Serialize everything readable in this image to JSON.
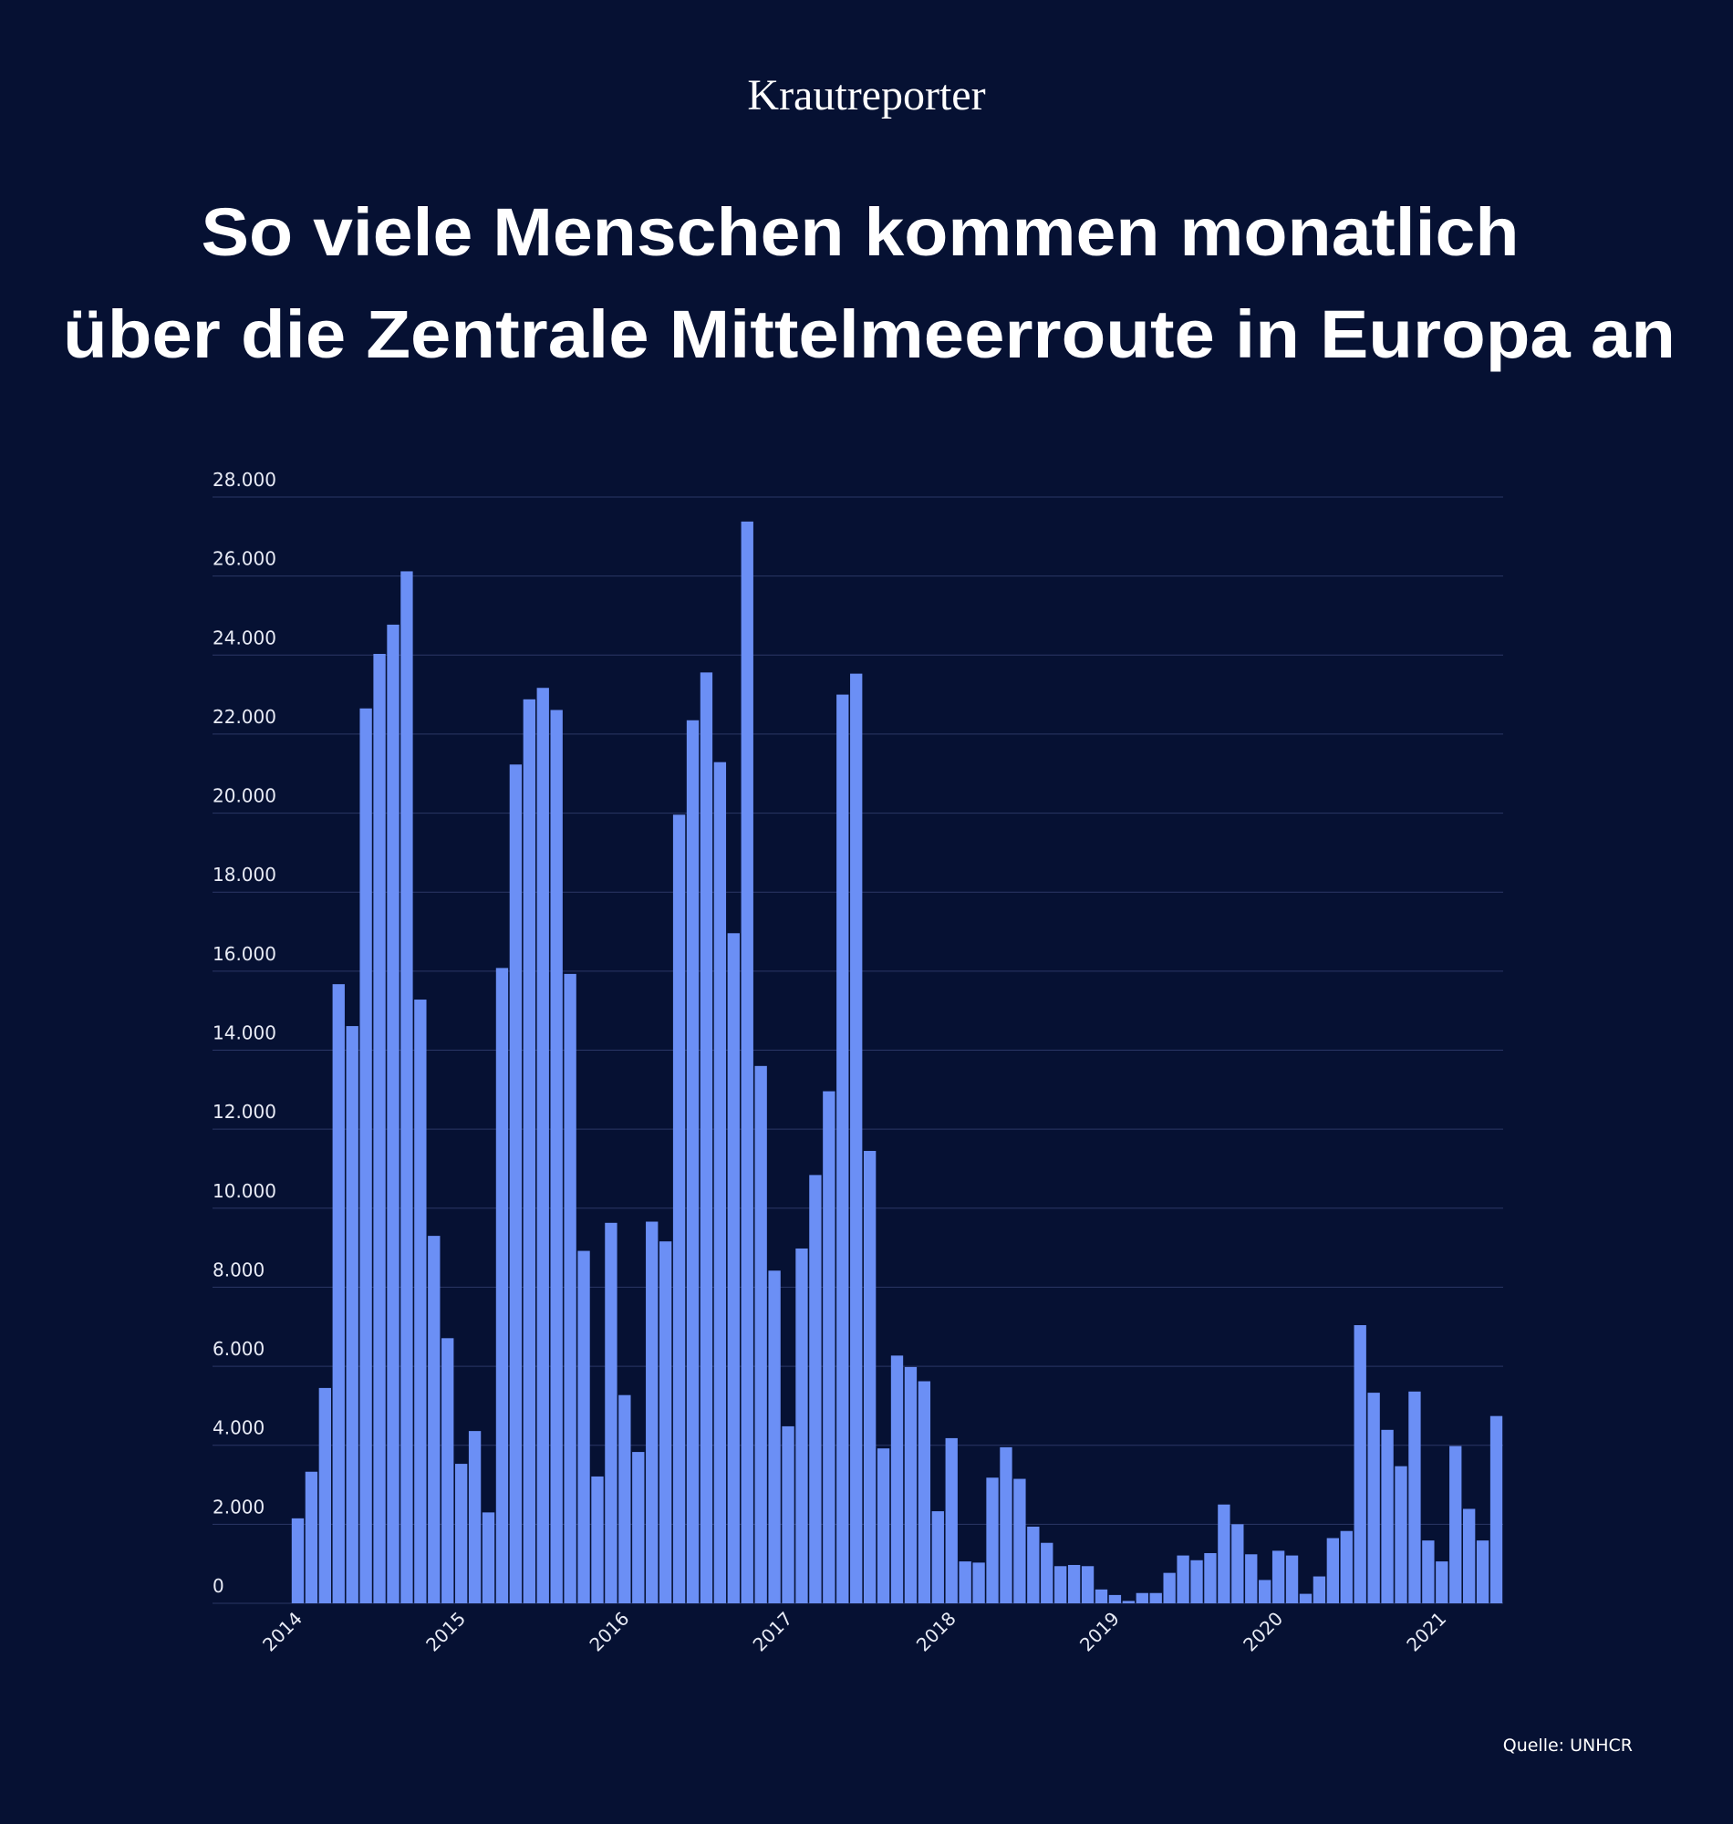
{
  "brand": "Krautreporter",
  "chart_data": {
    "type": "bar",
    "title": [
      "So viele Menschen kommen monatlich",
      "über die Zentrale Mittelmeerroute in Europa an"
    ],
    "source": "Quelle: UNHCR",
    "color": "#6b8ff5",
    "grid": true,
    "categories": [
      "2014",
      null,
      null,
      null,
      null,
      null,
      null,
      null,
      null,
      null,
      null,
      null,
      "2015",
      null,
      null,
      null,
      null,
      null,
      null,
      null,
      null,
      null,
      null,
      null,
      "2016",
      null,
      null,
      null,
      null,
      null,
      null,
      null,
      null,
      null,
      null,
      null,
      "2017",
      null,
      null,
      null,
      null,
      null,
      null,
      null,
      null,
      null,
      null,
      null,
      "2018",
      null,
      null,
      null,
      null,
      null,
      null,
      null,
      null,
      null,
      null,
      null,
      "2019",
      null,
      null,
      null,
      null,
      null,
      null,
      null,
      null,
      null,
      null,
      null,
      "2020",
      null,
      null,
      null,
      null,
      null,
      null,
      null,
      null,
      null,
      null,
      null,
      "2021",
      null,
      null,
      null,
      null
    ],
    "values": [
      2150,
      3330,
      5450,
      15670,
      14610,
      22650,
      24030,
      24770,
      26120,
      15280,
      9300,
      6710,
      3530,
      4360,
      2300,
      16080,
      21230,
      22880,
      23170,
      22610,
      15930,
      8920,
      3210,
      9630,
      5270,
      3830,
      9660,
      9160,
      19960,
      22350,
      23560,
      21290,
      16960,
      27380,
      13600,
      8420,
      4480,
      8980,
      10840,
      12960,
      23000,
      23530,
      11450,
      3920,
      6270,
      5980,
      5620,
      2330,
      4180,
      1060,
      1030,
      3180,
      3950,
      3150,
      1940,
      1530,
      940,
      970,
      940,
      350,
      210,
      60,
      260,
      260,
      770,
      1210,
      1090,
      1270,
      2500,
      2000,
      1240,
      590,
      1330,
      1210,
      240,
      680,
      1650,
      1830,
      7040,
      5330,
      4390,
      3470,
      5360,
      1590,
      1060,
      3980,
      2390,
      1590,
      4740
    ],
    "ylim": [
      0,
      28000
    ],
    "yticks": [
      0,
      {
        "value": 2000,
        "label": "2.000"
      },
      {
        "value": 4000,
        "label": "4.000"
      },
      {
        "value": 6000,
        "label": "6.000"
      },
      {
        "value": 8000,
        "label": "8.000"
      },
      {
        "value": 10000,
        "label": "10.000"
      },
      {
        "value": 12000,
        "label": "12.000"
      },
      {
        "value": 14000,
        "label": "14.000"
      },
      {
        "value": 16000,
        "label": "16.000"
      },
      {
        "value": 18000,
        "label": "18.000"
      },
      {
        "value": 20000,
        "label": "20.000"
      },
      {
        "value": 22000,
        "label": "22.000"
      },
      {
        "value": 24000,
        "label": "24.000"
      },
      {
        "value": 26000,
        "label": "26.000"
      },
      {
        "value": 28000,
        "label": "28.000"
      }
    ]
  }
}
